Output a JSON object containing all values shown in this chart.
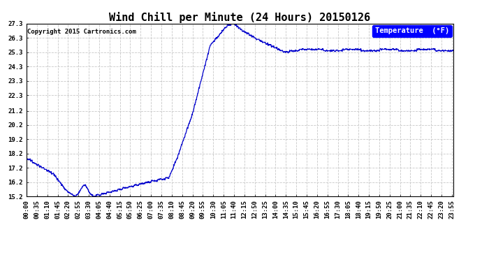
{
  "title": "Wind Chill per Minute (24 Hours) 20150126",
  "copyright_text": "Copyright 2015 Cartronics.com",
  "legend_label": "Temperature  (°F)",
  "line_color": "#0000cc",
  "background_color": "#ffffff",
  "grid_color": "#c8c8c8",
  "ytick_labels": [
    "15.2",
    "16.2",
    "17.2",
    "18.2",
    "19.2",
    "20.2",
    "21.2",
    "22.3",
    "23.3",
    "24.3",
    "25.3",
    "26.3",
    "27.3"
  ],
  "ytick_values": [
    15.2,
    16.2,
    17.2,
    18.2,
    19.2,
    20.2,
    21.2,
    22.3,
    23.3,
    24.3,
    25.3,
    26.3,
    27.3
  ],
  "ymin": 15.2,
  "ymax": 27.3,
  "xtick_labels": [
    "00:00",
    "00:35",
    "01:10",
    "01:45",
    "02:20",
    "02:55",
    "03:30",
    "04:05",
    "04:40",
    "05:15",
    "05:50",
    "06:25",
    "07:00",
    "07:35",
    "08:10",
    "08:45",
    "09:20",
    "09:55",
    "10:30",
    "11:05",
    "11:40",
    "12:15",
    "12:50",
    "13:25",
    "14:00",
    "14:35",
    "15:10",
    "15:45",
    "16:20",
    "16:55",
    "17:30",
    "18:05",
    "18:40",
    "19:15",
    "19:50",
    "20:25",
    "21:00",
    "21:35",
    "22:10",
    "22:45",
    "23:20",
    "23:55"
  ],
  "title_fontsize": 11,
  "axis_fontsize": 6.5,
  "copyright_fontsize": 6.5,
  "legend_fontsize": 7.5
}
